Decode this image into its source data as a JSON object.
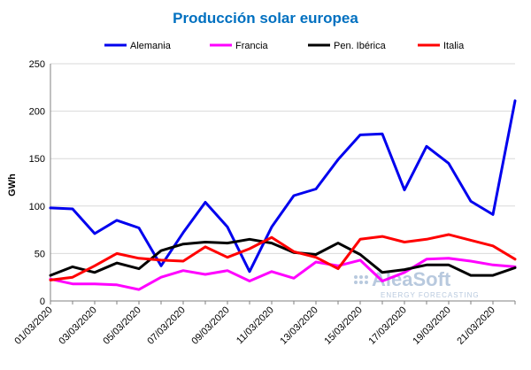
{
  "chart_data": {
    "type": "line",
    "title": "Producción solar europea",
    "xlabel": "",
    "ylabel": "GWh",
    "ylim": [
      0,
      250
    ],
    "yticks": [
      0,
      50,
      100,
      150,
      200,
      250
    ],
    "grid": true,
    "legend_position": "top",
    "x": [
      "01/03/2020",
      "02/03/2020",
      "03/03/2020",
      "04/03/2020",
      "05/03/2020",
      "06/03/2020",
      "07/03/2020",
      "08/03/2020",
      "09/03/2020",
      "10/03/2020",
      "11/03/2020",
      "12/03/2020",
      "13/03/2020",
      "14/03/2020",
      "15/03/2020",
      "16/03/2020",
      "17/03/2020",
      "18/03/2020",
      "19/03/2020",
      "20/03/2020",
      "21/03/2020",
      "22/03/2020"
    ],
    "xtick_labels": [
      "01/03/2020",
      "03/03/2020",
      "05/03/2020",
      "07/03/2020",
      "09/03/2020",
      "11/03/2020",
      "13/03/2020",
      "15/03/2020",
      "17/03/2020",
      "19/03/2020",
      "21/03/2020"
    ],
    "series": [
      {
        "name": "Alemania",
        "color": "#0000ee",
        "values": [
          98,
          97,
          71,
          85,
          77,
          37,
          72,
          104,
          78,
          31,
          78,
          111,
          118,
          149,
          175,
          176,
          117,
          163,
          145,
          105,
          91,
          211
        ]
      },
      {
        "name": "Francia",
        "color": "#ff00ff",
        "values": [
          23,
          18,
          18,
          17,
          12,
          25,
          32,
          28,
          32,
          21,
          31,
          24,
          41,
          37,
          43,
          21,
          30,
          44,
          45,
          42,
          38,
          36
        ]
      },
      {
        "name": "Pen. Ibérica",
        "color": "#000000",
        "values": [
          27,
          36,
          30,
          40,
          34,
          53,
          60,
          62,
          61,
          65,
          61,
          51,
          49,
          61,
          49,
          30,
          33,
          38,
          38,
          27,
          27,
          35
        ]
      },
      {
        "name": "Italia",
        "color": "#ff0000",
        "values": [
          22,
          25,
          37,
          50,
          45,
          43,
          42,
          57,
          46,
          55,
          67,
          52,
          46,
          34,
          65,
          68,
          62,
          65,
          70,
          64,
          58,
          44
        ]
      }
    ]
  },
  "watermark": {
    "brand": "AleaSoft",
    "tagline": "ENERGY FORECASTING"
  }
}
